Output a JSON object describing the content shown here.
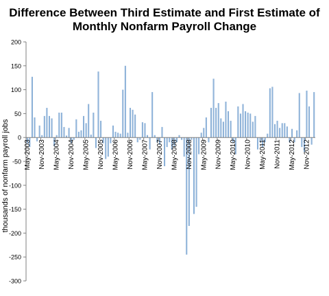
{
  "chart_data": {
    "type": "bar",
    "title_line1": "Difference Between Third Estimate and First Estimate of",
    "title_line2": "Monthly Nonfarm Payroll Change",
    "xlabel": "",
    "ylabel": "thousands of nonfarm payroll jobs",
    "ylim": [
      -300,
      200
    ],
    "yticks": [
      200,
      150,
      100,
      50,
      0,
      -50,
      -100,
      -150,
      -200,
      -250,
      -300
    ],
    "grid": false,
    "bar_color": "#9fbfe0",
    "bar_edge_color": "#6f9ccc",
    "start_month": "May-2003",
    "tick_labels": [
      "May-2003",
      "Nov-2003",
      "May-2004",
      "Nov-2004",
      "May-2005",
      "Nov-2005",
      "May-2006",
      "Nov-2006",
      "May-2007",
      "Nov-2007",
      "May-2008",
      "Nov-2008",
      "May-2009",
      "Nov-2009",
      "May-2010",
      "Nov-2010",
      "May-2011",
      "Nov-2011",
      "May-2012",
      "Nov-2012"
    ],
    "values": [
      -12,
      -20,
      127,
      42,
      -8,
      25,
      5,
      45,
      62,
      45,
      40,
      -18,
      5,
      52,
      52,
      22,
      4,
      20,
      -12,
      -5,
      38,
      12,
      15,
      45,
      30,
      70,
      6,
      52,
      -22,
      138,
      35,
      -12,
      -45,
      -40,
      -12,
      25,
      12,
      10,
      8,
      100,
      150,
      10,
      62,
      58,
      48,
      -10,
      -5,
      32,
      30,
      5,
      -25,
      95,
      5,
      -10,
      -15,
      22,
      -60,
      -20,
      -10,
      -25,
      -18,
      -10,
      5,
      -5,
      -40,
      -245,
      -185,
      -5,
      -160,
      -145,
      -35,
      10,
      20,
      42,
      -10,
      62,
      123,
      62,
      72,
      40,
      33,
      75,
      55,
      35,
      -10,
      -35,
      65,
      50,
      70,
      55,
      52,
      50,
      33,
      45,
      -25,
      -10,
      -20,
      -10,
      8,
      103,
      106,
      28,
      35,
      20,
      30,
      30,
      23,
      -10,
      18,
      -10,
      15,
      93,
      -20,
      -30,
      98,
      65,
      -15,
      95
    ]
  }
}
